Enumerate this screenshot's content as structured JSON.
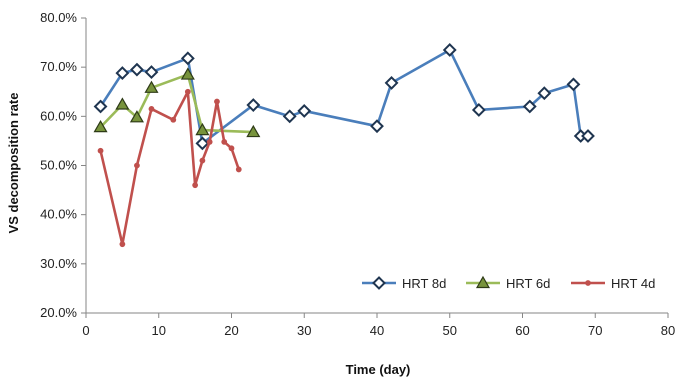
{
  "chart_data": {
    "type": "line",
    "title": "",
    "xlabel": "Time (day)",
    "ylabel": "VS decomposition rate",
    "xlim": [
      0,
      80
    ],
    "ylim": [
      0.2,
      0.8
    ],
    "x_ticks": [
      0,
      10,
      20,
      30,
      40,
      50,
      60,
      70,
      80
    ],
    "x_tick_labels": [
      "0",
      "10",
      "20",
      "30",
      "40",
      "50",
      "60",
      "70",
      "80"
    ],
    "y_ticks": [
      0.2,
      0.3,
      0.4,
      0.5,
      0.6,
      0.7,
      0.8
    ],
    "y_tick_labels": [
      "20.0%",
      "30.0%",
      "40.0%",
      "50.0%",
      "60.0%",
      "70.0%",
      "80.0%"
    ],
    "grid": false,
    "legend_position": "bottom-right",
    "series": [
      {
        "name": "HRT 8d",
        "color": "#4a7ebb",
        "marker": "diamond",
        "x": [
          2,
          5,
          7,
          9,
          14,
          16,
          23,
          28,
          30,
          40,
          42,
          50,
          54,
          61,
          63,
          67,
          68,
          69
        ],
        "y": [
          0.62,
          0.688,
          0.695,
          0.69,
          0.718,
          0.545,
          0.623,
          0.6,
          0.611,
          0.58,
          0.668,
          0.735,
          0.613,
          0.62,
          0.647,
          0.665,
          0.56,
          0.56
        ]
      },
      {
        "name": "HRT 6d",
        "color": "#9bbb59",
        "marker": "triangle",
        "x": [
          2,
          5,
          7,
          9,
          14,
          16,
          23
        ],
        "y": [
          0.578,
          0.624,
          0.598,
          0.658,
          0.685,
          0.572,
          0.568
        ]
      },
      {
        "name": "HRT 4d",
        "color": "#c0504d",
        "marker": "dot",
        "x": [
          2,
          5,
          7,
          9,
          12,
          14,
          15,
          16,
          17,
          18,
          19,
          20,
          21
        ],
        "y": [
          0.53,
          0.34,
          0.5,
          0.615,
          0.593,
          0.65,
          0.46,
          0.51,
          0.548,
          0.63,
          0.548,
          0.535,
          0.492
        ]
      }
    ]
  }
}
